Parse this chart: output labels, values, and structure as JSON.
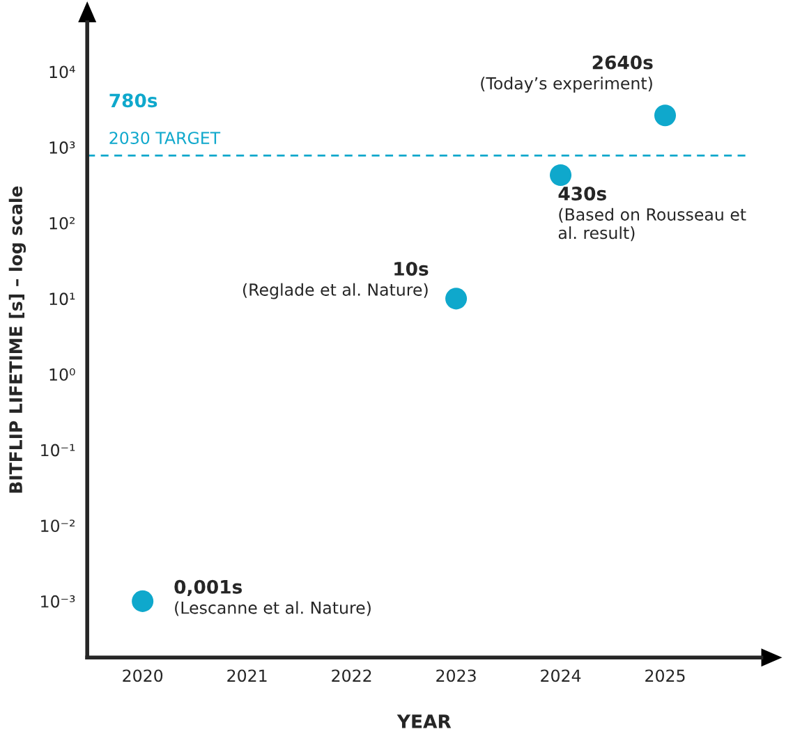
{
  "chart_data": {
    "type": "scatter",
    "xlabel": "YEAR",
    "ylabel": "BITFLIP LIFETIME [s] – log scale",
    "x": [
      2020,
      2023,
      2024,
      2025
    ],
    "series": [
      {
        "color": "#0fa8cc",
        "values": [
          0.001,
          10,
          430,
          2640
        ]
      }
    ],
    "value_labels": [
      "0,001s",
      "10s",
      "430s",
      "2640s"
    ],
    "annotations": [
      {
        "text": "(Lescanne et al. Nature)",
        "x": 2020,
        "y": 0.001
      },
      {
        "text": "(Reglade et al. Nature)",
        "x": 2023,
        "y": 10
      },
      {
        "text": "(Based on Rousseau et\nal. result)",
        "x": 2024,
        "y": 430
      },
      {
        "text": "(Today’s experiment)",
        "x": 2025,
        "y": 2640
      }
    ],
    "ref_lines": [
      {
        "axis": "y",
        "value": 780,
        "label": "780s\n2030 TARGET",
        "color": "#0fa8cc",
        "line_style": "dashed"
      }
    ],
    "log": "y",
    "marker": "circle",
    "grid": false,
    "xlim": [
      2019.47,
      2025.92
    ],
    "ylim": [
      0.00018,
      45000
    ],
    "xticks": [
      2020,
      2021,
      2022,
      2023,
      2024,
      2025
    ],
    "yticks": [
      {
        "value": 0.001,
        "label": "10⁻³"
      },
      {
        "value": 0.01,
        "label": "10⁻²"
      },
      {
        "value": 0.1,
        "label": "10⁻¹"
      },
      {
        "value": 1,
        "label": "10⁰"
      },
      {
        "value": 10,
        "label": "10¹"
      },
      {
        "value": 100,
        "label": "10²"
      },
      {
        "value": 1000,
        "label": "10³"
      },
      {
        "value": 10000,
        "label": "10⁴"
      }
    ]
  }
}
